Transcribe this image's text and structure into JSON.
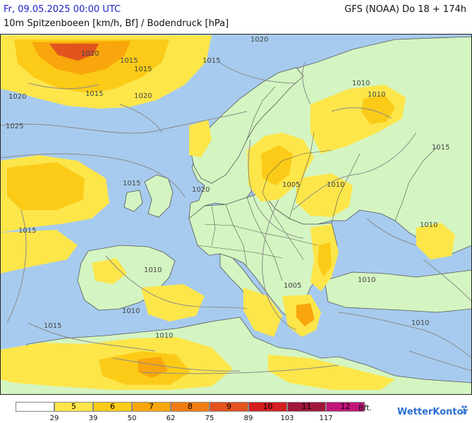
{
  "header": {
    "datetime": "Fr, 09.05.2025 00:00 UTC",
    "model": "GFS (NOAA) Do 18 + 174h",
    "parameter": "10m Spitzenboeen [km/h, Bf] / Bodendruck [hPa]"
  },
  "colors": {
    "sea": "#a7cbee",
    "land": "#d4f5c2",
    "bft5": "#fde64a",
    "bft6": "#fbcb18",
    "bft7": "#f8a60c",
    "bft8": "#f27c12",
    "bft9": "#e2531e",
    "bft10": "#d41e20",
    "bft11": "#a0163c",
    "bft12": "#c1147a"
  },
  "isobars": [
    "1020",
    "1020",
    "1015",
    "1015",
    "1020",
    "1020",
    "1025",
    "1015",
    "1015",
    "1015",
    "1015",
    "1010",
    "1010",
    "1015",
    "1005",
    "1010",
    "1010",
    "1005",
    "1010",
    "1010",
    "1010",
    "1010",
    "1010",
    "1015",
    "1020"
  ],
  "legend": {
    "boxes": [
      {
        "label": "",
        "color": "#ffffff"
      },
      {
        "label": "5",
        "color": "#fde64a"
      },
      {
        "label": "6",
        "color": "#fbcb18"
      },
      {
        "label": "7",
        "color": "#f8a60c"
      },
      {
        "label": "8",
        "color": "#f27c12"
      },
      {
        "label": "9",
        "color": "#e2531e"
      },
      {
        "label": "10",
        "color": "#d41e20"
      },
      {
        "label": "11",
        "color": "#a0163c"
      },
      {
        "label": "12",
        "color": "#c1147a"
      }
    ],
    "ticks": [
      "29",
      "39",
      "50",
      "62",
      "75",
      "89",
      "103",
      "117"
    ],
    "unit": "Bft."
  },
  "branding": {
    "name": "WetterKontor",
    "logo_icon": "wetterkontor-logo-icon"
  }
}
